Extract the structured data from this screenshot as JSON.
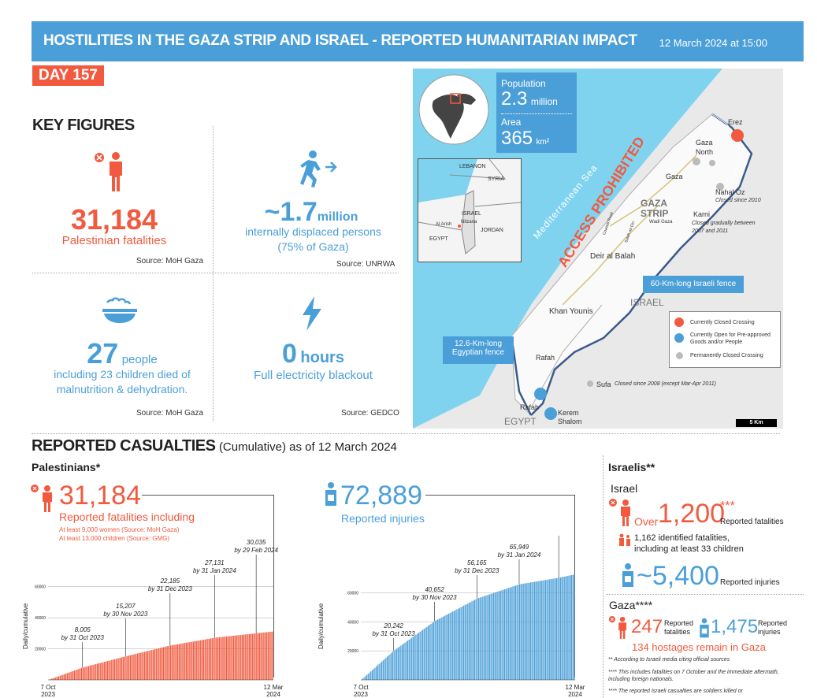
{
  "header": {
    "title": "HOSTILITIES IN THE GAZA STRIP AND ISRAEL - REPORTED HUMANITARIAN IMPACT",
    "date": "12 March 2024 at 15:00"
  },
  "day": "DAY 157",
  "key_figures": {
    "title": "KEY FIGURES",
    "fatalities": {
      "value": "31,184",
      "label": "Palestinian fatalities",
      "source": "Source: MoH Gaza"
    },
    "displaced": {
      "value": "~1.7",
      "unit": "million",
      "label1": "internally displaced persons",
      "label2": "(75% of Gaza)",
      "source": "Source: UNRWA"
    },
    "malnutrition": {
      "value": "27",
      "unit": "people",
      "label1": "including 23 children died of",
      "label2": "malnutrition & dehydration.",
      "source": "Source: MoH Gaza"
    },
    "electricity": {
      "value": "0",
      "unit": "hours",
      "label": "Full electricity blackout",
      "source": "Source: GEDCO"
    }
  },
  "map": {
    "population_label": "Population",
    "population_value": "2.3",
    "population_unit": "million",
    "area_label": "Area",
    "area_value": "365",
    "area_unit": "km²",
    "sea": "Mediterranean Sea",
    "access": "ACCESS PROHIBITED",
    "places": {
      "erez": "Erez",
      "gaza_north1": "Gaza",
      "gaza_north2": "North",
      "gaza": "Gaza",
      "gaza_strip1": "GAZA",
      "gaza_strip2": "STRIP",
      "nahal_oz": "Nahal Oz",
      "nahal_oz_note": "Closed since 2010",
      "karni": "Karni",
      "karni_note1": "Closed gradually between",
      "karni_note2": "2007 and 2011",
      "wadi_gaza": "Wadi Gaza",
      "deir": "Deir al Balah",
      "israel": "ISRAEL",
      "khan": "Khan Younis",
      "rafah": "Rafah",
      "rafah2": "Rafah",
      "sufa": "Sufa",
      "sufa_note": "Closed since 2008 (except Mar-Apr 2011)",
      "kerem1": "Kerem",
      "kerem2": "Shalom",
      "egypt": "EGYPT",
      "coastal": "Coastal Road",
      "salah": "Salah ad Din"
    },
    "inset": {
      "lebanon": "LEBANON",
      "syria": "SYRIA",
      "israel": "ISRAEL",
      "jordan": "JORDAN",
      "egypt": "EGYPT",
      "al_arish": "Al Arish",
      "nitzana": "Nitzana"
    },
    "fence_israel": "60-Km-long Israeli fence",
    "fence_egypt1": "12.6-Km-long",
    "fence_egypt2": "Egyptian fence",
    "legend": {
      "closed": "Currently Closed Crossing",
      "open1": "Currently Open for Pre-approved",
      "open2": "Goods and/or People",
      "perm": "Permanently Closed Crossing"
    },
    "scale": "5 Km",
    "colors": {
      "sea": "#7fd3ee",
      "land": "#e9e9e9",
      "fence": "#3b5a8c",
      "closed": "#f15a3f",
      "open": "#4b9fd8"
    }
  },
  "casualties": {
    "title": "REPORTED CASUALTIES",
    "subtitle": "(Cumulative) as of 12 March 2024",
    "palestinians": "Palestinians*",
    "pal_fatal": {
      "value": "31,184",
      "label": "Reported fatalities including",
      "women": "At least 9,000 women (Source: MoH Gaza)",
      "children": "At least 13,000 children (Source: GMG)"
    },
    "pal_inj": {
      "value": "72,889",
      "label": "Reported injuries"
    }
  },
  "israelis": {
    "title": "Israelis**",
    "israel": "Israel",
    "over": "Over",
    "fatal_value": "1,200",
    "fatal_stars": "***",
    "fatal_label": "Reported fatalities",
    "identified1": "1,162 identified fatalities,",
    "identified2": "including at least 33 children",
    "inj_value": "~5,400",
    "inj_label": "Reported injuries",
    "gaza": "Gaza****",
    "gaza_fatal": "247",
    "gaza_fatal_label1": "Reported",
    "gaza_fatal_label2": "fatalities",
    "gaza_inj": "1,475",
    "gaza_inj_label1": "Reported",
    "gaza_inj_label2": "injuries",
    "hostages": "134 hostages remain in Gaza",
    "note1": "** According to Israeli media citing official sources",
    "note2a": "**** This includes fatalities on 7 October and the immediate aftermath,",
    "note2b": "including foreign nationals.",
    "note3": "**** The reported Israeli casualties are soldiers killed or"
  },
  "chart_data": [
    {
      "type": "bar",
      "series": [
        {
          "name": "",
          "color": "#f15a3f",
          "x": [
            "7 Oct 2023",
            "31 Oct 2023",
            "30 Nov 2023",
            "31 Dec 2023",
            "31 Jan 2024",
            "29 Feb 2024",
            "12 Mar 2024"
          ],
          "values": [
            0,
            8005,
            15207,
            22185,
            27131,
            30035,
            31184
          ]
        }
      ],
      "ylabel": "Daily/cumulative",
      "ylim": [
        0,
        70000
      ],
      "yticks": [
        20000,
        40000,
        60000
      ],
      "xstart": "7 Oct\n2023",
      "xend": "12 Mar\n2024",
      "annotations": [
        {
          "date": "by 31 Oct 2023",
          "value": "8,005"
        },
        {
          "date": "by 30 Nov 2023",
          "value": "15,207"
        },
        {
          "date": "by 31 Dec 2023",
          "value": "22,185"
        },
        {
          "date": "by 31 Jan 2024",
          "value": "27,131"
        },
        {
          "date": "by 29 Feb 2024",
          "value": "30,035"
        }
      ]
    },
    {
      "type": "bar",
      "series": [
        {
          "name": "",
          "color": "#4b9fd8",
          "x": [
            "7 Oct 2023",
            "31 Oct 2023",
            "30 Nov 2023",
            "31 Dec 2023",
            "31 Jan 2024",
            "29 Feb 2024",
            "12 Mar 2024"
          ],
          "values": [
            0,
            20242,
            40652,
            56165,
            65949,
            70457,
            72889
          ]
        }
      ],
      "ylabel": "Daily/cumulative",
      "ylim": [
        0,
        75000
      ],
      "yticks": [
        20000,
        40000,
        60000
      ],
      "xstart": "7 Oct\n2023",
      "xend": "12 Mar\n2024",
      "annotations": [
        {
          "date": "by 31 Oct 2023",
          "value": "20,242"
        },
        {
          "date": "by 30 Nov 2023",
          "value": "40,652"
        },
        {
          "date": "by 31 Dec 2023",
          "value": "56,165"
        },
        {
          "date": "by 31 Jan 2024",
          "value": "65,949"
        },
        {
          "date": "by 29 Feb 2024",
          "value": "70,457"
        }
      ]
    }
  ]
}
